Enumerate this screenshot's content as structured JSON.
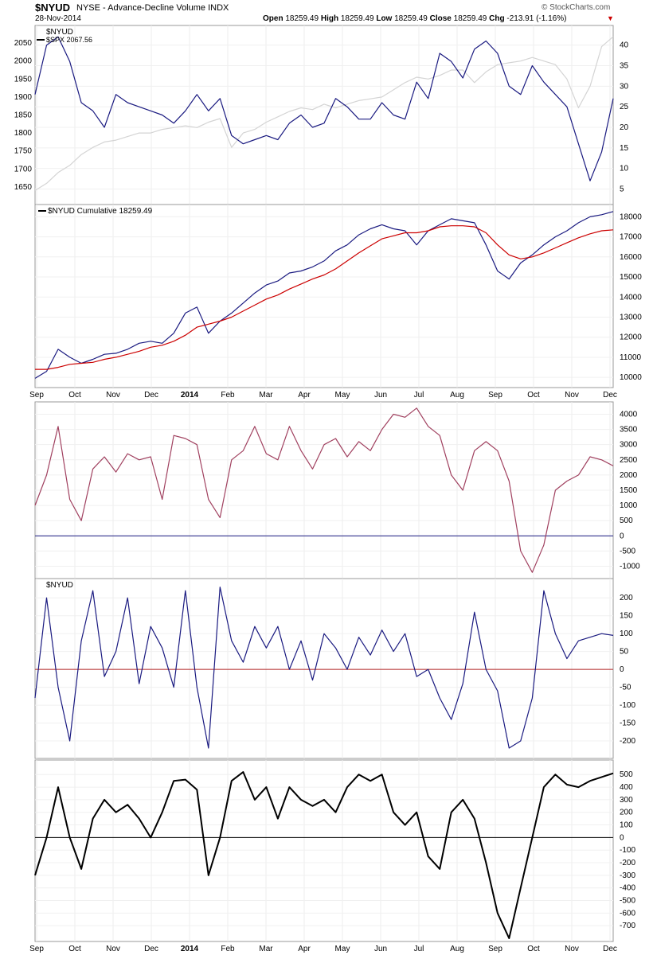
{
  "header": {
    "symbol": "$NYUD",
    "description": "NYSE - Advance-Decline Volume INDX",
    "date": "28-Nov-2014",
    "brand": "© StockCharts.com",
    "open_label": "Open",
    "open": "18259.49",
    "high_label": "High",
    "high": "18259.49",
    "low_label": "Low",
    "low": "18259.49",
    "close_label": "Close",
    "close": "18259.49",
    "chg_label": "Chg",
    "chg": "-213.91 (-1.16%)",
    "chg_icon": "triangle-down-icon"
  },
  "colors": {
    "navy": "#1a1a80",
    "red": "#cc0000",
    "gray": "#d4d4d4",
    "maroon": "#a0405f",
    "black": "#000000",
    "zero_line_4": "#b22222"
  },
  "x_axis": {
    "labels": [
      "Sep",
      "Oct",
      "Nov",
      "Dec",
      "2014",
      "Feb",
      "Mar",
      "Apr",
      "May",
      "Jun",
      "Jul",
      "Aug",
      "Sep",
      "Oct",
      "Nov",
      "Dec"
    ],
    "bold": [
      "2014"
    ]
  },
  "chart_data": [
    {
      "type": "line",
      "panel": 1,
      "legend": [
        "$NYUD",
        "$SPX 2067.56"
      ],
      "left_ticks": [
        "1650",
        "1700",
        "1750",
        "1800",
        "1850",
        "1900",
        "1950",
        "2000",
        "2050"
      ],
      "right_ticks": [
        "5",
        "10",
        "15",
        "20",
        "25",
        "30",
        "35",
        "40"
      ],
      "ylim_left": [
        1610,
        2090
      ],
      "ylim_right": [
        2,
        44
      ],
      "series": [
        {
          "name": "$NYUD",
          "axis": "right",
          "color": "navy",
          "x": [
            0,
            2,
            4,
            6,
            8,
            10,
            12,
            14,
            16,
            18,
            20,
            22,
            24,
            26,
            28,
            30,
            32,
            34,
            36,
            38,
            40,
            42,
            44,
            46,
            48,
            50,
            52,
            54,
            56,
            58,
            60,
            62,
            64,
            66,
            68,
            70,
            72,
            74,
            76,
            78,
            80,
            82,
            84,
            86,
            88,
            90,
            92,
            94,
            96,
            98,
            100
          ],
          "values": [
            28,
            40,
            42,
            36,
            26,
            24,
            20,
            28,
            26,
            25,
            24,
            23,
            21,
            24,
            28,
            24,
            27,
            18,
            16,
            17,
            18,
            17,
            21,
            23,
            20,
            21,
            27,
            25,
            22,
            22,
            26,
            23,
            22,
            31,
            27,
            38,
            36,
            32,
            39,
            41,
            38,
            30,
            28,
            35,
            31,
            28,
            25,
            16,
            7,
            14,
            27
          ]
        },
        {
          "name": "$SPX 2067.56",
          "axis": "left",
          "color": "gray",
          "x": [
            0,
            2,
            4,
            6,
            8,
            10,
            12,
            14,
            16,
            18,
            20,
            22,
            24,
            26,
            28,
            30,
            32,
            34,
            36,
            38,
            40,
            42,
            44,
            46,
            48,
            50,
            52,
            54,
            56,
            58,
            60,
            62,
            64,
            66,
            68,
            70,
            72,
            74,
            76,
            78,
            80,
            82,
            84,
            86,
            88,
            90,
            92,
            94,
            96,
            98,
            100
          ],
          "values": [
            1640,
            1660,
            1690,
            1710,
            1740,
            1760,
            1775,
            1780,
            1790,
            1800,
            1800,
            1810,
            1815,
            1820,
            1815,
            1830,
            1840,
            1760,
            1800,
            1810,
            1830,
            1845,
            1860,
            1870,
            1865,
            1880,
            1870,
            1880,
            1890,
            1895,
            1900,
            1920,
            1940,
            1955,
            1950,
            1960,
            1975,
            1975,
            1940,
            1970,
            1990,
            1995,
            2000,
            2010,
            2000,
            1990,
            1950,
            1870,
            1930,
            2040,
            2067.56
          ]
        }
      ]
    },
    {
      "type": "line",
      "panel": 2,
      "legend": [
        "$NYUD Cumulative 18259.49"
      ],
      "right_ticks": [
        "10000",
        "11000",
        "12000",
        "13000",
        "14000",
        "15000",
        "16000",
        "17000",
        "18000"
      ],
      "ylim": [
        9650,
        18450
      ],
      "series": [
        {
          "name": "$NYUD Cumulative 18259.49",
          "color": "navy",
          "x": [
            0,
            2,
            4,
            6,
            8,
            10,
            12,
            14,
            16,
            18,
            20,
            22,
            24,
            26,
            28,
            30,
            32,
            34,
            36,
            38,
            40,
            42,
            44,
            46,
            48,
            50,
            52,
            54,
            56,
            58,
            60,
            62,
            64,
            66,
            68,
            70,
            72,
            74,
            76,
            78,
            80,
            82,
            84,
            86,
            88,
            90,
            92,
            94,
            96,
            98,
            100
          ],
          "values": [
            9950,
            10300,
            11400,
            11000,
            10700,
            10900,
            11150,
            11200,
            11400,
            11700,
            11800,
            11700,
            12200,
            13200,
            13500,
            12200,
            12800,
            13200,
            13700,
            14200,
            14600,
            14800,
            15200,
            15300,
            15500,
            15800,
            16300,
            16600,
            17100,
            17400,
            17600,
            17400,
            17300,
            16600,
            17300,
            17600,
            17900,
            17800,
            17700,
            16600,
            15300,
            14900,
            15700,
            16100,
            16600,
            17000,
            17300,
            17700,
            18000,
            18100,
            18259.49
          ]
        },
        {
          "color": "red",
          "x": [
            0,
            2,
            4,
            6,
            8,
            10,
            12,
            14,
            16,
            18,
            20,
            22,
            24,
            26,
            28,
            30,
            32,
            34,
            36,
            38,
            40,
            42,
            44,
            46,
            48,
            50,
            52,
            54,
            56,
            58,
            60,
            62,
            64,
            66,
            68,
            70,
            72,
            74,
            76,
            78,
            80,
            82,
            84,
            86,
            88,
            90,
            92,
            94,
            96,
            98,
            100
          ],
          "values": [
            10400,
            10400,
            10500,
            10650,
            10700,
            10750,
            10900,
            11000,
            11150,
            11300,
            11500,
            11600,
            11800,
            12100,
            12500,
            12650,
            12800,
            13000,
            13300,
            13600,
            13900,
            14100,
            14400,
            14650,
            14900,
            15100,
            15400,
            15800,
            16200,
            16550,
            16900,
            17050,
            17200,
            17200,
            17300,
            17500,
            17550,
            17550,
            17500,
            17200,
            16600,
            16100,
            15900,
            16000,
            16200,
            16450,
            16700,
            16950,
            17150,
            17300,
            17350
          ]
        }
      ]
    },
    {
      "type": "line",
      "panel": 3,
      "right_ticks": [
        "-1000",
        "-500",
        "0",
        "500",
        "1000",
        "1500",
        "2000",
        "2500",
        "3000",
        "3500",
        "4000"
      ],
      "ylim": [
        -1300,
        4300
      ],
      "zero_line": true,
      "series": [
        {
          "color": "maroon",
          "x": [
            0,
            2,
            4,
            6,
            8,
            10,
            12,
            14,
            16,
            18,
            20,
            22,
            24,
            26,
            28,
            30,
            32,
            34,
            36,
            38,
            40,
            42,
            44,
            46,
            48,
            50,
            52,
            54,
            56,
            58,
            60,
            62,
            64,
            66,
            68,
            70,
            72,
            74,
            76,
            78,
            80,
            82,
            84,
            86,
            88,
            90,
            92,
            94,
            96,
            98,
            100
          ],
          "values": [
            1000,
            2000,
            3600,
            1200,
            500,
            2200,
            2600,
            2100,
            2700,
            2500,
            2600,
            1200,
            3300,
            3200,
            3000,
            1200,
            600,
            2500,
            2800,
            3600,
            2700,
            2500,
            3600,
            2800,
            2200,
            3000,
            3200,
            2600,
            3100,
            2800,
            3500,
            4000,
            3900,
            4200,
            3600,
            3300,
            2000,
            1500,
            2800,
            3100,
            2800,
            1800,
            -500,
            -1200,
            -300,
            1500,
            1800,
            2000,
            2600,
            2500,
            2300
          ]
        }
      ]
    },
    {
      "type": "line",
      "panel": 4,
      "legend": [
        "$NYUD"
      ],
      "right_ticks": [
        "-200",
        "-150",
        "-100",
        "-50",
        "0",
        "50",
        "100",
        "150",
        "200"
      ],
      "ylim": [
        -240,
        245
      ],
      "zero_line": true,
      "series": [
        {
          "name": "$NYUD",
          "color": "navy",
          "x": [
            0,
            2,
            4,
            6,
            8,
            10,
            12,
            14,
            16,
            18,
            20,
            22,
            24,
            26,
            28,
            30,
            32,
            34,
            36,
            38,
            40,
            42,
            44,
            46,
            48,
            50,
            52,
            54,
            56,
            58,
            60,
            62,
            64,
            66,
            68,
            70,
            72,
            74,
            76,
            78,
            80,
            82,
            84,
            86,
            88,
            90,
            92,
            94,
            96,
            98,
            100
          ],
          "values": [
            -80,
            200,
            -50,
            -200,
            80,
            220,
            -20,
            50,
            200,
            -40,
            120,
            60,
            -50,
            220,
            -50,
            -220,
            230,
            80,
            20,
            120,
            60,
            120,
            0,
            80,
            -30,
            100,
            60,
            0,
            90,
            40,
            110,
            50,
            100,
            -20,
            0,
            -80,
            -140,
            -40,
            160,
            0,
            -60,
            -220,
            -200,
            -80,
            220,
            100,
            30,
            80,
            90,
            100,
            95
          ]
        }
      ]
    },
    {
      "type": "line",
      "panel": 5,
      "right_ticks": [
        "-700",
        "-600",
        "-500",
        "-400",
        "-300",
        "-200",
        "-100",
        "0",
        "100",
        "200",
        "300",
        "400",
        "500"
      ],
      "ylim": [
        -800,
        590
      ],
      "zero_line": true,
      "series": [
        {
          "color": "black",
          "x": [
            0,
            2,
            4,
            6,
            8,
            10,
            12,
            14,
            16,
            18,
            20,
            22,
            24,
            26,
            28,
            30,
            32,
            34,
            36,
            38,
            40,
            42,
            44,
            46,
            48,
            50,
            52,
            54,
            56,
            58,
            60,
            62,
            64,
            66,
            68,
            70,
            72,
            74,
            76,
            78,
            80,
            82,
            84,
            86,
            88,
            90,
            92,
            94,
            96,
            98,
            100
          ],
          "values": [
            -300,
            0,
            400,
            0,
            -250,
            150,
            300,
            200,
            260,
            150,
            0,
            200,
            450,
            460,
            380,
            -300,
            0,
            450,
            520,
            300,
            400,
            150,
            400,
            300,
            250,
            300,
            200,
            400,
            500,
            450,
            500,
            200,
            100,
            200,
            -150,
            -250,
            200,
            300,
            150,
            -200,
            -600,
            -800,
            -400,
            0,
            400,
            500,
            420,
            400,
            450,
            480,
            510
          ]
        }
      ]
    }
  ]
}
